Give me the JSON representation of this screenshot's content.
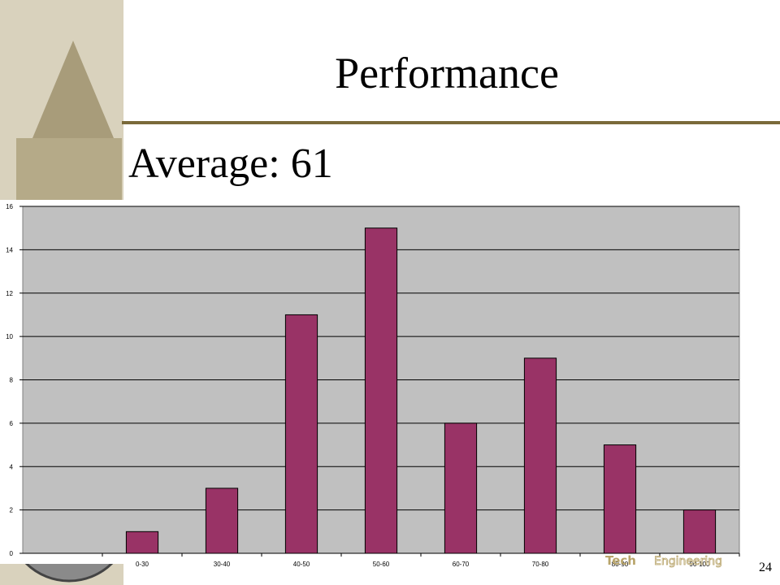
{
  "chart_data": {
    "type": "bar",
    "title": "Performance",
    "subtitle": "Average: 61",
    "categories": [
      null,
      "0-30",
      "30-40",
      "40-50",
      "50-60",
      "60-70",
      "70-80",
      "80-90",
      "90-100"
    ],
    "values": [
      null,
      1,
      3,
      11,
      15,
      6,
      9,
      5,
      2
    ],
    "color": "#993366",
    "ylim": [
      0,
      16
    ],
    "yticks": [
      0,
      2,
      4,
      6,
      8,
      10,
      12,
      14,
      16
    ],
    "grid": true
  },
  "logo": {
    "left": "Tech",
    "right": "Engineering"
  },
  "page_number": "24"
}
